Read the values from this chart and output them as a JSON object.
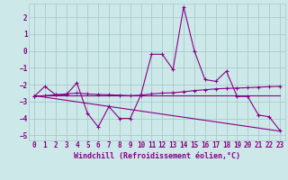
{
  "xlabel": "Windchill (Refroidissement éolien,°C)",
  "background_color": "#cce8e8",
  "grid_color": "#aacccc",
  "line_color": "#880088",
  "xlim": [
    -0.5,
    23.5
  ],
  "ylim": [
    -5.3,
    2.8
  ],
  "xticks": [
    0,
    1,
    2,
    3,
    4,
    5,
    6,
    7,
    8,
    9,
    10,
    11,
    12,
    13,
    14,
    15,
    16,
    17,
    18,
    19,
    20,
    21,
    22,
    23
  ],
  "yticks": [
    -5,
    -4,
    -3,
    -2,
    -1,
    0,
    1,
    2
  ],
  "series_main": {
    "x": [
      0,
      1,
      2,
      3,
      4,
      5,
      6,
      7,
      8,
      9,
      10,
      11,
      12,
      13,
      14,
      15,
      16,
      17,
      18,
      19,
      20,
      21,
      22,
      23
    ],
    "y": [
      -2.7,
      -2.1,
      -2.6,
      -2.6,
      -1.9,
      -3.7,
      -4.5,
      -3.3,
      -4.0,
      -4.0,
      -2.6,
      -0.2,
      -0.2,
      -1.1,
      2.6,
      0.0,
      -1.7,
      -1.8,
      -1.2,
      -2.7,
      -2.7,
      -3.8,
      -3.9,
      -4.7
    ]
  },
  "series_flat": {
    "x": [
      0,
      23
    ],
    "y": [
      -2.65,
      -2.65
    ]
  },
  "series_trend_up": {
    "x": [
      0,
      1,
      2,
      3,
      4,
      5,
      6,
      7,
      8,
      9,
      10,
      11,
      12,
      13,
      14,
      15,
      16,
      17,
      18,
      19,
      20,
      21,
      22,
      23
    ],
    "y": [
      -2.7,
      -2.65,
      -2.6,
      -2.55,
      -2.5,
      -2.55,
      -2.58,
      -2.6,
      -2.62,
      -2.65,
      -2.62,
      -2.55,
      -2.5,
      -2.48,
      -2.42,
      -2.35,
      -2.3,
      -2.25,
      -2.22,
      -2.2,
      -2.18,
      -2.15,
      -2.12,
      -2.1
    ]
  },
  "series_diagonal": {
    "x": [
      0,
      23
    ],
    "y": [
      -2.65,
      -4.75
    ]
  }
}
